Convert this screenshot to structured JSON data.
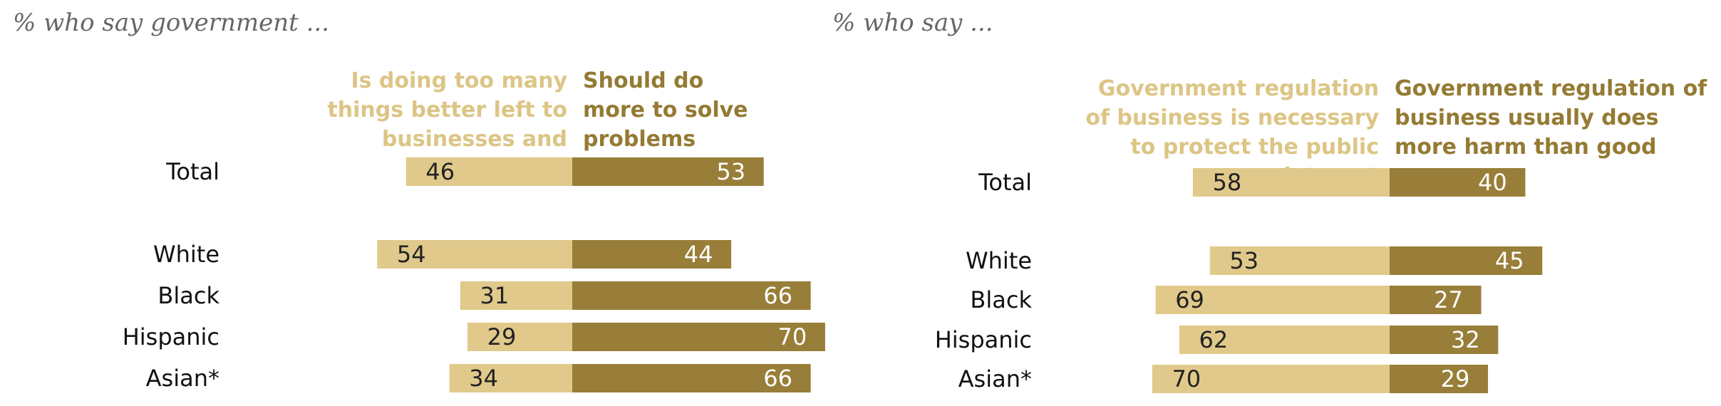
{
  "colors": {
    "light": "#E0C98A",
    "dark": "#987E38",
    "light_text": "#DCC585",
    "dark_text": "#947A33"
  },
  "chart_data": [
    {
      "type": "bar",
      "orientation": "diverging-horizontal",
      "subtitle": "% who say government ...",
      "categories": [
        "Total",
        "White",
        "Black",
        "Hispanic",
        "Asian*"
      ],
      "series": [
        {
          "name": "Is doing too many things better left to businesses and individuals",
          "values": [
            46,
            54,
            31,
            29,
            34
          ]
        },
        {
          "name": "Should do more to solve problems",
          "values": [
            53,
            44,
            66,
            70,
            66
          ]
        }
      ]
    },
    {
      "type": "bar",
      "orientation": "diverging-horizontal",
      "subtitle": "% who say ...",
      "categories": [
        "Total",
        "White",
        "Black",
        "Hispanic",
        "Asian*"
      ],
      "series": [
        {
          "name": "Government regulation of business is necessary to protect the public interest",
          "values": [
            58,
            53,
            69,
            62,
            70
          ]
        },
        {
          "name": "Government regulation of business usually does more harm than good",
          "values": [
            40,
            45,
            27,
            32,
            29
          ]
        }
      ]
    }
  ]
}
